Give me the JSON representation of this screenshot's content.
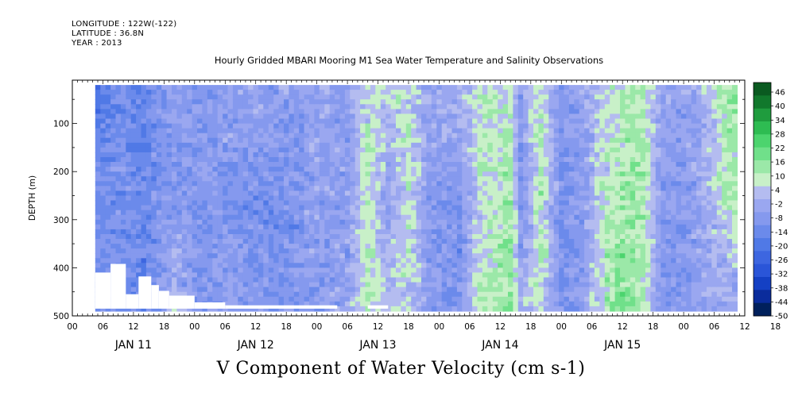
{
  "header": {
    "longitude": "LONGITUDE : 122W(-122)",
    "latitude": "LATITUDE : 36.8N",
    "year": "YEAR : 2013",
    "title": "Hourly Gridded MBARI Mooring M1 Sea Water Temperature and Salinity Observations"
  },
  "footer": {
    "variable_label": "V Component of Water Velocity (cm s-1)"
  },
  "chart_data": {
    "type": "heatmap",
    "title": "Hourly Gridded MBARI Mooring M1 Sea Water Temperature and Salinity Observations",
    "xlabel": "",
    "ylabel": "DEPTH (m)",
    "variable": "V Component of Water Velocity (cm s-1)",
    "x_hour_tick_labels": [
      "00",
      "06",
      "12",
      "18",
      "00",
      "06",
      "12",
      "18",
      "00",
      "06",
      "12",
      "18",
      "00",
      "06",
      "12",
      "18",
      "00",
      "06",
      "12",
      "18",
      "00",
      "06",
      "12",
      "18"
    ],
    "x_day_labels": [
      "JAN 11",
      "JAN 12",
      "JAN 13",
      "JAN 14",
      "JAN 15"
    ],
    "xlim_hours": [
      0,
      132
    ],
    "data_start_hour": 4.5,
    "data_end_hour": 130.5,
    "y_ticks": [
      100,
      200,
      300,
      400,
      500
    ],
    "ylim": [
      10,
      500
    ],
    "y_reversed": true,
    "data_depth_range": [
      20,
      485
    ],
    "colorbar_labels": [
      "46",
      "40",
      "34",
      "28",
      "22",
      "16",
      "10",
      "4",
      "-2",
      "-8",
      "-14",
      "-20",
      "-26",
      "-32",
      "-38",
      "-44",
      "-50"
    ],
    "colorbar_range": [
      -50,
      49
    ],
    "color_levels": [
      "#00205c",
      "#0a2c9c",
      "#1440c4",
      "#2a55d8",
      "#3d66e0",
      "#5079e6",
      "#6b8aeb",
      "#8599ee",
      "#9aa7f0",
      "#b4bcf0",
      "#c8f0c8",
      "#9be8a8",
      "#70e08a",
      "#4cd46e",
      "#2ebc52",
      "#1f9c3e",
      "#11782c",
      "#0a5a20"
    ],
    "profiles": [
      {
        "day": 4.5,
        "upper": -16,
        "mid": -14,
        "deep": -14
      },
      {
        "day": 8,
        "upper": -14,
        "mid": -12,
        "deep": -10
      },
      {
        "day": 10,
        "upper": -12,
        "mid": -10,
        "deep": -12
      },
      {
        "day": 14,
        "upper": -16,
        "mid": -14,
        "deep": -20
      },
      {
        "day": 18,
        "upper": -10,
        "mid": -8,
        "deep": -6
      },
      {
        "day": 20,
        "upper": -6,
        "mid": -10,
        "deep": 4
      },
      {
        "day": 24,
        "upper": -10,
        "mid": -8,
        "deep": -10
      },
      {
        "day": 30,
        "upper": -6,
        "mid": -10,
        "deep": -6
      },
      {
        "day": 36,
        "upper": -6,
        "mid": -12,
        "deep": -8
      },
      {
        "day": 44,
        "upper": -8,
        "mid": -10,
        "deep": -10
      },
      {
        "day": 48,
        "upper": -4,
        "mid": -6,
        "deep": -8
      },
      {
        "day": 54,
        "upper": -8,
        "mid": -6,
        "deep": -4
      },
      {
        "day": 58,
        "upper": 6,
        "mid": 8,
        "deep": 10
      },
      {
        "day": 62,
        "upper": 4,
        "mid": -6,
        "deep": 2
      },
      {
        "day": 66,
        "upper": 6,
        "mid": 8,
        "deep": 4
      },
      {
        "day": 70,
        "upper": -4,
        "mid": -8,
        "deep": -8
      },
      {
        "day": 76,
        "upper": 0,
        "mid": -10,
        "deep": -10
      },
      {
        "day": 80,
        "upper": 10,
        "mid": 4,
        "deep": 8
      },
      {
        "day": 84,
        "upper": 6,
        "mid": 10,
        "deep": 12
      },
      {
        "day": 86,
        "upper": 8,
        "mid": 14,
        "deep": 16
      },
      {
        "day": 88,
        "upper": -6,
        "mid": -10,
        "deep": 0
      },
      {
        "day": 92,
        "upper": 8,
        "mid": 10,
        "deep": 6
      },
      {
        "day": 96,
        "upper": -8,
        "mid": -12,
        "deep": -10
      },
      {
        "day": 100,
        "upper": -4,
        "mid": -8,
        "deep": -6
      },
      {
        "day": 104,
        "upper": 2,
        "mid": 6,
        "deep": 10
      },
      {
        "day": 108,
        "upper": 8,
        "mid": 14,
        "deep": 16
      },
      {
        "day": 112,
        "upper": 10,
        "mid": 12,
        "deep": 8
      },
      {
        "day": 116,
        "upper": -6,
        "mid": -8,
        "deep": -10
      },
      {
        "day": 120,
        "upper": -4,
        "mid": -10,
        "deep": -8
      },
      {
        "day": 126,
        "upper": 4,
        "mid": 2,
        "deep": -4
      },
      {
        "day": 130.5,
        "upper": 16,
        "mid": 12,
        "deep": -6
      }
    ]
  }
}
